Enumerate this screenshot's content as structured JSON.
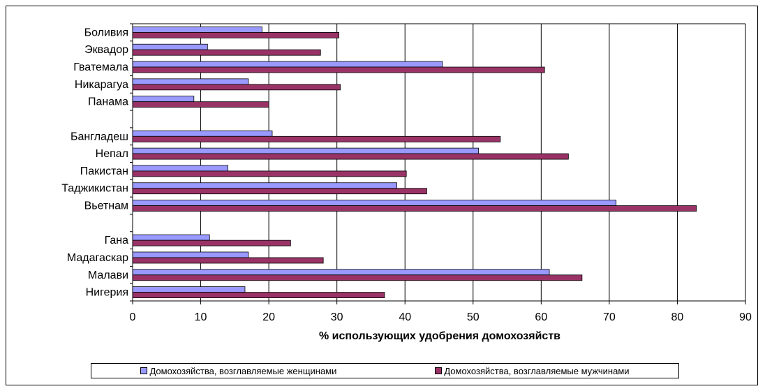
{
  "chart_data": {
    "type": "bar",
    "orientation": "horizontal",
    "categories": [
      "Боливия",
      "Эквадор",
      "Гватемала",
      "Никарагуа",
      "Панама",
      "",
      "Бангладеш",
      "Непал",
      "Пакистан",
      "Таджикистан",
      "Вьетнам",
      "",
      "Гана",
      "Мадагаскар",
      "Малави",
      "Нигерия"
    ],
    "series": [
      {
        "name": "Домохозяйства, возглавляемые женщинами",
        "color": "#9999FF",
        "values": [
          19,
          11,
          45.5,
          17,
          9,
          null,
          20.5,
          50.8,
          14,
          38.8,
          71,
          null,
          11.3,
          17,
          61.2,
          16.5
        ]
      },
      {
        "name": "Домохозяйства, возглавляемые мужчинами",
        "color": "#993366",
        "values": [
          30.3,
          27.6,
          60.5,
          30.5,
          20,
          null,
          54,
          64,
          40.2,
          43.2,
          82.8,
          null,
          23.2,
          28,
          66,
          37
        ]
      }
    ],
    "xlabel": "% использующих удобрения домохозяйств",
    "xlim": [
      0,
      90
    ],
    "xticks": [
      0,
      10,
      20,
      30,
      40,
      50,
      60,
      70,
      80,
      90
    ],
    "grid": "vertical",
    "legend": "bottom"
  }
}
